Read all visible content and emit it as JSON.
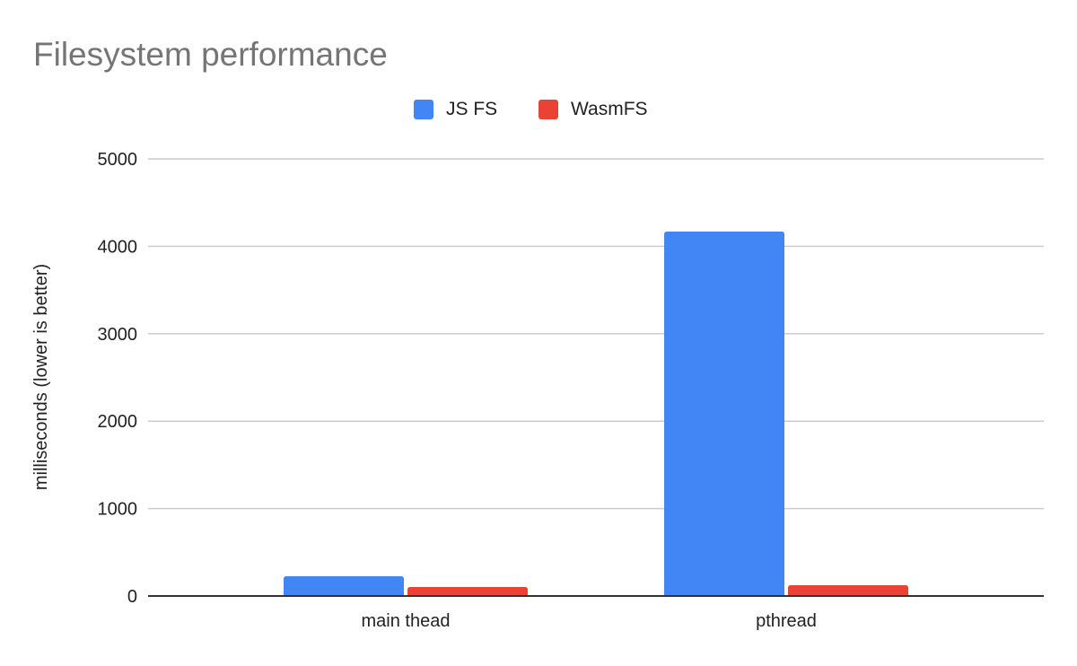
{
  "chart_data": {
    "type": "bar",
    "title": "Filesystem performance",
    "xlabel": "",
    "ylabel": "milliseconds (lower is better)",
    "categories": [
      "main thead",
      "pthread"
    ],
    "series": [
      {
        "name": "JS FS",
        "values": [
          226,
          4168
        ],
        "color": "#4285f4"
      },
      {
        "name": "WasmFS",
        "values": [
          103,
          123
        ],
        "color": "#ea4335"
      }
    ],
    "ylim": [
      0,
      5000
    ],
    "yticks": [
      0,
      1000,
      2000,
      3000,
      4000,
      5000
    ],
    "grid": true,
    "legend": "top"
  }
}
